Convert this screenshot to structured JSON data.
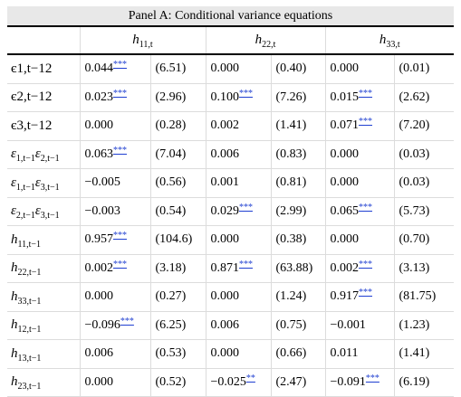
{
  "panel_title": "Panel A: Conditional variance equations",
  "columns": [
    {
      "base": "h",
      "sub": "11,t"
    },
    {
      "base": "h",
      "sub": "22,t"
    },
    {
      "base": "h",
      "sub": "33,t"
    }
  ],
  "rows": [
    {
      "label": {
        "type": "plain",
        "text": "є1,t−12"
      },
      "cells": [
        {
          "v": "0.044",
          "s": "***",
          "t": "(6.51)"
        },
        {
          "v": "0.000",
          "s": "",
          "t": "(0.40)"
        },
        {
          "v": "0.000",
          "s": "",
          "t": "(0.01)"
        }
      ]
    },
    {
      "label": {
        "type": "plain",
        "text": "є2,t−12"
      },
      "cells": [
        {
          "v": "0.023",
          "s": "***",
          "t": "(2.96)"
        },
        {
          "v": "0.100",
          "s": "***",
          "t": "(7.26)"
        },
        {
          "v": "0.015",
          "s": "***",
          "t": "(2.62)"
        }
      ]
    },
    {
      "label": {
        "type": "plain",
        "text": "є3,t−12"
      },
      "cells": [
        {
          "v": "0.000",
          "s": "",
          "t": "(0.28)"
        },
        {
          "v": "0.002",
          "s": "",
          "t": "(1.41)"
        },
        {
          "v": "0.071",
          "s": "***",
          "t": "(7.20)"
        }
      ]
    },
    {
      "label": {
        "type": "pair",
        "a": "ε",
        "asub": "1,t−1",
        "b": "ε",
        "bsub": "2,t−1"
      },
      "cells": [
        {
          "v": "0.063",
          "s": "***",
          "t": "(7.04)"
        },
        {
          "v": "0.006",
          "s": "",
          "t": "(0.83)"
        },
        {
          "v": "0.000",
          "s": "",
          "t": "(0.03)"
        }
      ]
    },
    {
      "label": {
        "type": "pair",
        "a": "ε",
        "asub": "1,t−1",
        "b": "ε",
        "bsub": "3,t−1"
      },
      "cells": [
        {
          "v": "−0.005",
          "s": "",
          "t": "(0.56)"
        },
        {
          "v": "0.001",
          "s": "",
          "t": "(0.81)"
        },
        {
          "v": "0.000",
          "s": "",
          "t": "(0.03)"
        }
      ]
    },
    {
      "label": {
        "type": "pair",
        "a": "ε",
        "asub": "2,t−1",
        "b": "ε",
        "bsub": "3,t−1"
      },
      "cells": [
        {
          "v": "−0.003",
          "s": "",
          "t": "(0.54)"
        },
        {
          "v": "0.029",
          "s": "***",
          "t": "(2.99)"
        },
        {
          "v": "0.065",
          "s": "***",
          "t": "(5.73)"
        }
      ]
    },
    {
      "label": {
        "type": "single",
        "a": "h",
        "asub": "11,t−1"
      },
      "cells": [
        {
          "v": "0.957",
          "s": "***",
          "t": "(104.6)"
        },
        {
          "v": "0.000",
          "s": "",
          "t": "(0.38)"
        },
        {
          "v": "0.000",
          "s": "",
          "t": "(0.70)"
        }
      ]
    },
    {
      "label": {
        "type": "single",
        "a": "h",
        "asub": "22,t−1"
      },
      "cells": [
        {
          "v": "0.002",
          "s": "***",
          "t": "(3.18)"
        },
        {
          "v": "0.871",
          "s": "***",
          "t": "(63.88)"
        },
        {
          "v": "0.002",
          "s": "***",
          "t": "(3.13)"
        }
      ]
    },
    {
      "label": {
        "type": "single",
        "a": "h",
        "asub": "33,t−1"
      },
      "cells": [
        {
          "v": "0.000",
          "s": "",
          "t": "(0.27)"
        },
        {
          "v": "0.000",
          "s": "",
          "t": "(1.24)"
        },
        {
          "v": "0.917",
          "s": "***",
          "t": "(81.75)"
        }
      ]
    },
    {
      "label": {
        "type": "single",
        "a": "h",
        "asub": "12,t−1"
      },
      "cells": [
        {
          "v": "−0.096",
          "s": "***",
          "t": "(6.25)"
        },
        {
          "v": "0.006",
          "s": "",
          "t": "(0.75)"
        },
        {
          "v": "−0.001",
          "s": "",
          "t": "(1.23)"
        }
      ]
    },
    {
      "label": {
        "type": "single",
        "a": "h",
        "asub": "13,t−1"
      },
      "cells": [
        {
          "v": "0.006",
          "s": "",
          "t": "(0.53)"
        },
        {
          "v": "0.000",
          "s": "",
          "t": "(0.66)"
        },
        {
          "v": "0.011",
          "s": "",
          "t": "(1.41)"
        }
      ]
    },
    {
      "label": {
        "type": "single",
        "a": "h",
        "asub": "23,t−1"
      },
      "cells": [
        {
          "v": "0.000",
          "s": "",
          "t": "(0.52)"
        },
        {
          "v": "−0.025",
          "s": "**",
          "t": "(2.47)"
        },
        {
          "v": "−0.091",
          "s": "***",
          "t": "(6.19)"
        }
      ]
    }
  ]
}
